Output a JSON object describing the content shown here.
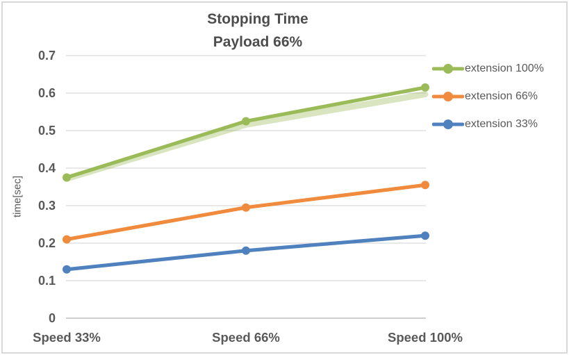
{
  "title": {
    "line1": "Stopping Time",
    "line2": "Payload 66%"
  },
  "chart_data": {
    "type": "line",
    "title": "Stopping Time",
    "subtitle": "Payload 66%",
    "categories": [
      "Speed 33%",
      "Speed 66%",
      "Speed 100%"
    ],
    "series": [
      {
        "name": "extension 100%",
        "values": [
          0.375,
          0.525,
          0.615
        ],
        "color": "#9BBB59"
      },
      {
        "name": "extension 66%",
        "values": [
          0.21,
          0.295,
          0.355
        ],
        "color": "#F08A3C"
      },
      {
        "name": "extension 33%",
        "values": [
          0.13,
          0.18,
          0.22
        ],
        "color": "#4E81BD"
      }
    ],
    "shadow_series": {
      "name": "extension 100% glow band",
      "values": [
        0.372,
        0.516,
        0.597
      ],
      "color": "#9BBB59",
      "opacity": 0.38
    },
    "xlabel": "",
    "ylabel": "time[sec]",
    "ylim": [
      0,
      0.7
    ],
    "ytick_step": 0.1,
    "grid": true,
    "legend_position": "right",
    "marker": "circle"
  },
  "colors": {
    "title_text": "#4D4D4D",
    "axis_text": "#595959",
    "gridline": "#D9D9D9",
    "axis_line": "#BFBFBF",
    "background": "#FFFFFF",
    "border": "#D8D8D8"
  }
}
